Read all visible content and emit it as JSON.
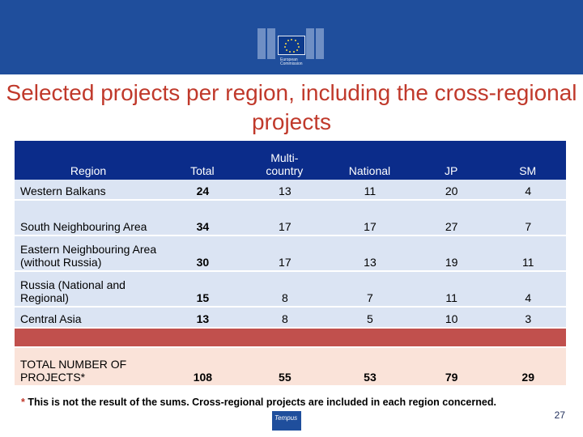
{
  "header": {
    "logo_line1": "European",
    "logo_line2": "Commission"
  },
  "title": "Selected projects per region, including the cross-regional projects",
  "table": {
    "headers": [
      "Region",
      "Total",
      "Multi-country",
      "National",
      "JP",
      "SM"
    ],
    "rows": [
      {
        "region": "Western Balkans",
        "cells": [
          "24",
          "13",
          "11",
          "20",
          "4"
        ]
      },
      {
        "region": "South Neighbouring Area",
        "cells": [
          "34",
          "17",
          "17",
          "27",
          "7"
        ]
      },
      {
        "region": "Eastern Neighbouring Area (without Russia)",
        "cells": [
          "30",
          "17",
          "13",
          "19",
          "11"
        ]
      },
      {
        "region": "Russia (National and Regional)",
        "cells": [
          "15",
          "8",
          "7",
          "11",
          "4"
        ]
      },
      {
        "region": "Central Asia",
        "cells": [
          "13",
          "8",
          "5",
          "10",
          "3"
        ]
      }
    ],
    "total": {
      "region": "TOTAL NUMBER OF PROJECTS*",
      "cells": [
        "108",
        "55",
        "53",
        "79",
        "29"
      ]
    }
  },
  "footnote": {
    "asterisk": "*",
    "text": " This is not the result of the sums. Cross-regional projects are included in each region concerned."
  },
  "tempus_label": "Tempus",
  "page_number": "27",
  "colors": {
    "banner": "#1f4e9c",
    "title": "#c0392b",
    "header_row": "#0b2c8a",
    "row_fill": "#dbe4f3",
    "separator_row": "#c1504d",
    "total_row": "#fae3d9"
  }
}
